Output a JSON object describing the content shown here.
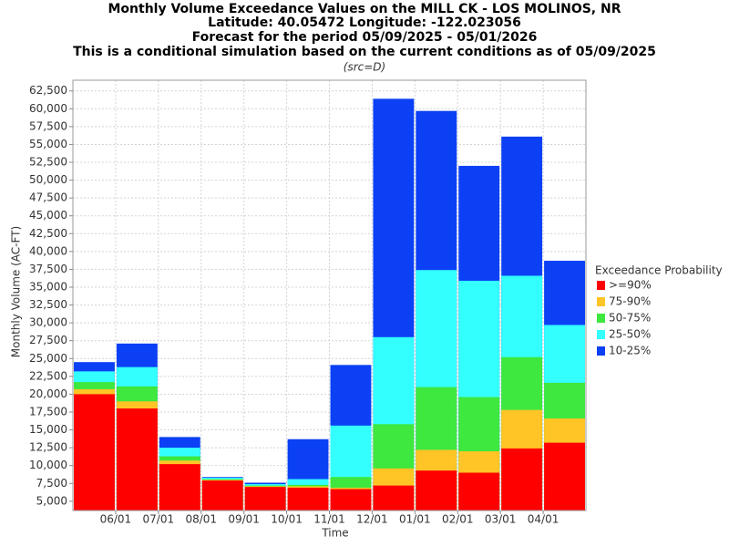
{
  "chart_data": {
    "type": "bar",
    "title": "Monthly Volume Exceedance Values on the MILL CK - LOS MOLINOS, NR",
    "subtitle_lines": [
      "Latitude: 40.05472 Longitude: -122.023056",
      "Forecast for the period 05/09/2025 - 05/01/2026",
      "This is a conditional simulation based on the current conditions as of 05/09/2025"
    ],
    "source": "(src=D)",
    "x_label": "Time",
    "y_label": "Monthly Volume (AC-FT)",
    "legend_title": "Exceedance Probability",
    "legend": "right",
    "grid": true,
    "categories": [
      null,
      null,
      null,
      null,
      null,
      null,
      null,
      null,
      null,
      null,
      null,
      null
    ],
    "xticks": [
      "06/01",
      "07/01",
      "08/01",
      "09/01",
      "10/01",
      "11/01",
      "12/01",
      "01/01",
      "02/01",
      "03/01",
      "04/01"
    ],
    "ylim": [
      3700,
      64000
    ],
    "yticks": [
      {
        "value": 5000,
        "label": "5,000"
      },
      {
        "value": 7500,
        "label": "7,500"
      },
      {
        "value": 10000,
        "label": "10,000"
      },
      {
        "value": 12500,
        "label": "12,500"
      },
      {
        "value": 15000,
        "label": "15,000"
      },
      {
        "value": 17500,
        "label": "17,500"
      },
      {
        "value": 20000,
        "label": "20,000"
      },
      {
        "value": 22500,
        "label": "22,500"
      },
      {
        "value": 25000,
        "label": "25,000"
      },
      {
        "value": 27500,
        "label": "27,500"
      },
      {
        "value": 30000,
        "label": "30,000"
      },
      {
        "value": 32500,
        "label": "32,500"
      },
      {
        "value": 35000,
        "label": "35,000"
      },
      {
        "value": 37500,
        "label": "37,500"
      },
      {
        "value": 40000,
        "label": "40,000"
      },
      {
        "value": 42500,
        "label": "42,500"
      },
      {
        "value": 45000,
        "label": "45,000"
      },
      {
        "value": 47500,
        "label": "47,500"
      },
      {
        "value": 50000,
        "label": "50,000"
      },
      {
        "value": 52500,
        "label": "52,500"
      },
      {
        "value": 55000,
        "label": "55,000"
      },
      {
        "value": 57500,
        "label": "57,500"
      },
      {
        "value": 60000,
        "label": "60,000"
      },
      {
        "value": 62500,
        "label": "62,500"
      }
    ],
    "series": [
      {
        "name": ">=90%",
        "color": "#ff0000",
        "values": [
          20000,
          18000,
          10200,
          7900,
          7000,
          6900,
          6700,
          7200,
          9300,
          9000,
          12400,
          13200
        ]
      },
      {
        "name": "75-90%",
        "color": "#ffc425",
        "values": [
          20700,
          19000,
          10700,
          8000,
          7100,
          7100,
          6900,
          9600,
          12200,
          12000,
          17800,
          16600
        ]
      },
      {
        "name": "50-75%",
        "color": "#3ee83e",
        "values": [
          21700,
          21100,
          11300,
          8100,
          7200,
          7300,
          8400,
          15800,
          21000,
          19600,
          25200,
          21600
        ]
      },
      {
        "name": "25-50%",
        "color": "#33ffff",
        "values": [
          23200,
          23800,
          12500,
          8300,
          7400,
          8100,
          15600,
          28000,
          37400,
          35900,
          36600,
          29700
        ]
      },
      {
        "name": "10-25%",
        "color": "#0c40f5",
        "values": [
          24500,
          27100,
          14000,
          8400,
          7600,
          13700,
          24100,
          61400,
          59700,
          52000,
          56100,
          38700
        ]
      }
    ]
  }
}
